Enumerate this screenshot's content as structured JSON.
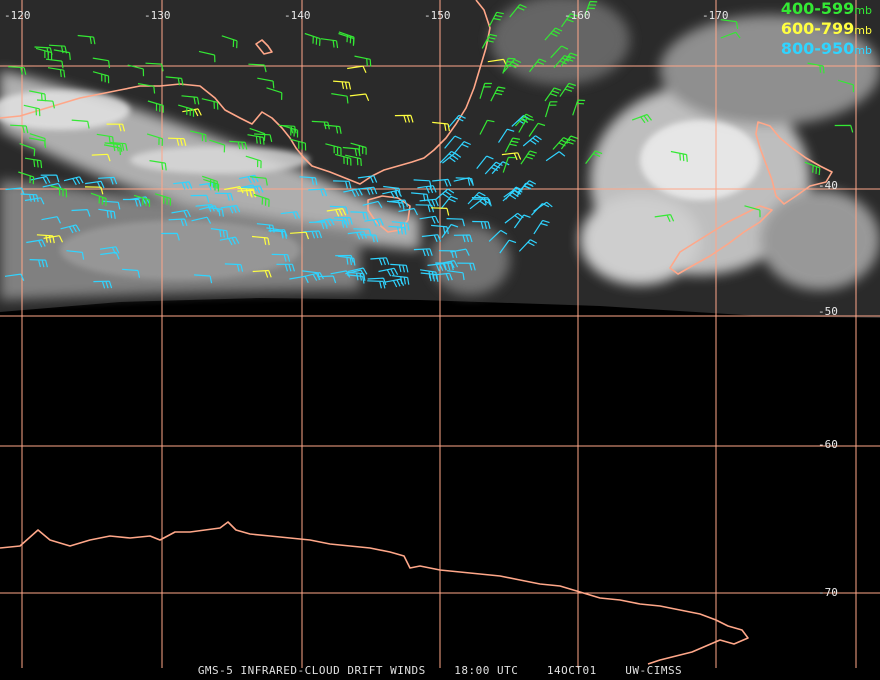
{
  "colors": {
    "grid": "#ffa789",
    "coast": "#ffa789",
    "wind_high": "#34e834",
    "wind_mid": "#ffff40",
    "wind_low": "#30d4ff"
  },
  "legend": [
    {
      "range": "400-599",
      "unit": "mb",
      "color": "#34e834"
    },
    {
      "range": "600-799",
      "unit": "mb",
      "color": "#ffff40"
    },
    {
      "range": "800-950",
      "unit": "mb",
      "color": "#30d4ff"
    }
  ],
  "longitude_labels": [
    "-120",
    "-130",
    "-140",
    "-150",
    "-160",
    "-170"
  ],
  "latitude_labels": [
    "-40",
    "-50",
    "-60",
    "-70"
  ],
  "footer": {
    "satellite": "GMS-5 INFRARED-CLOUD DRIFT WINDS",
    "time": "18:00 UTC",
    "date": "14OCT01",
    "source": "UW-CIMSS"
  }
}
